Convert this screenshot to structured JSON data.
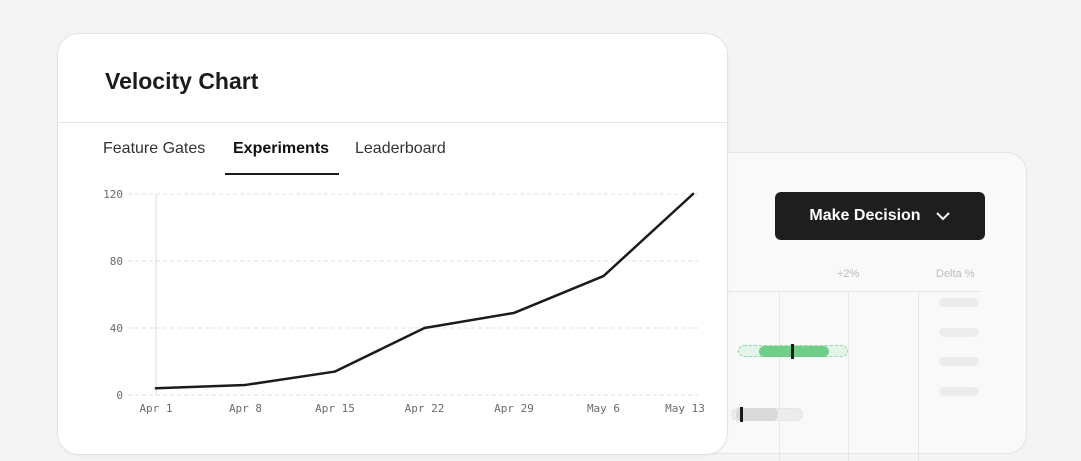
{
  "velocity_card": {
    "title": "Velocity Chart",
    "tabs": [
      {
        "label": "Feature Gates",
        "active": false
      },
      {
        "label": "Experiments",
        "active": true
      },
      {
        "label": "Leaderboard",
        "active": false
      }
    ]
  },
  "decision_card": {
    "button_label": "Make Decision",
    "columns": [
      "+2%",
      "Delta %"
    ]
  },
  "chart_data": {
    "type": "line",
    "title": "",
    "xlabel": "",
    "ylabel": "",
    "x": [
      "Apr 1",
      "Apr 8",
      "Apr 15",
      "Apr 22",
      "Apr 29",
      "May 6",
      "May 13"
    ],
    "x_positions": [
      0,
      1,
      2,
      3,
      4,
      5,
      6
    ],
    "series": [
      {
        "x": [
          0,
          1,
          2,
          3,
          4,
          5,
          6
        ],
        "values": [
          4,
          6,
          14,
          40,
          49,
          71,
          120
        ]
      }
    ],
    "yticks": [
      "0",
      "40",
      "80",
      "120"
    ],
    "ylim": [
      0,
      120
    ],
    "grid": true,
    "line_color": "#1b1b1b"
  }
}
